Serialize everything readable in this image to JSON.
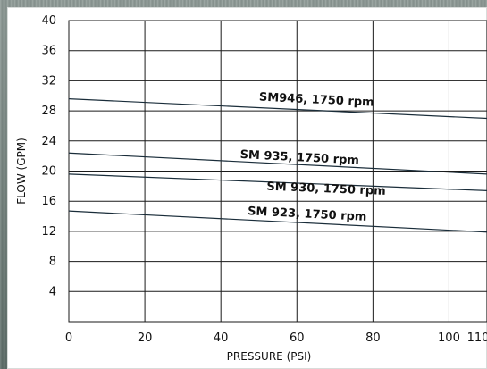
{
  "chart_data": {
    "type": "line",
    "xlabel": "PRESSURE (PSI)",
    "ylabel": "FLOW (GPM)",
    "xlim": [
      0,
      110
    ],
    "ylim": [
      0,
      40
    ],
    "x_ticks": [
      0,
      20,
      40,
      60,
      80,
      100,
      110
    ],
    "y_ticks": [
      4,
      8,
      12,
      16,
      20,
      24,
      28,
      32,
      36,
      40
    ],
    "grid": true,
    "series": [
      {
        "name": "SM946, 1750 rpm",
        "x": [
          0,
          110
        ],
        "y": [
          29.6,
          27.0
        ]
      },
      {
        "name": "SM 935, 1750 rpm",
        "x": [
          0,
          110
        ],
        "y": [
          22.4,
          19.6
        ]
      },
      {
        "name": "SM 930, 1750 rpm",
        "x": [
          0,
          110
        ],
        "y": [
          19.6,
          17.4
        ]
      },
      {
        "name": "SM 923, 1750 rpm",
        "x": [
          0,
          110
        ],
        "y": [
          14.7,
          11.9
        ]
      }
    ]
  }
}
